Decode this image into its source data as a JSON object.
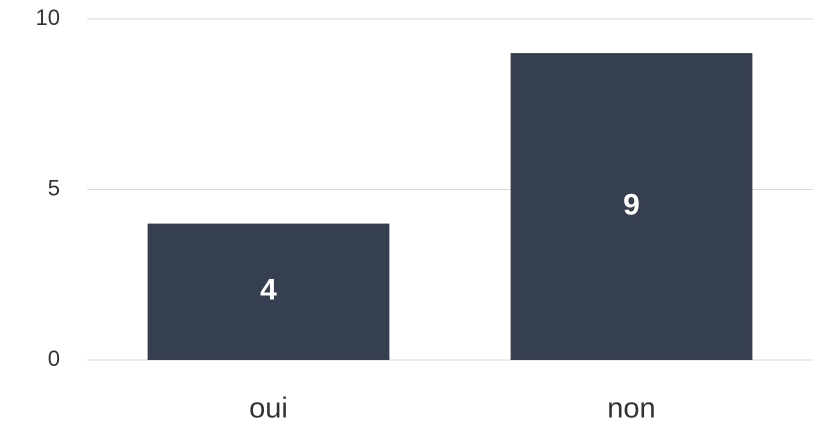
{
  "chart_data": {
    "type": "bar",
    "categories": [
      "oui",
      "non"
    ],
    "values": [
      4,
      9
    ],
    "color": "#353f50",
    "ylim": [
      0,
      10
    ],
    "yticks": [
      0,
      5,
      10
    ],
    "grid": true
  }
}
